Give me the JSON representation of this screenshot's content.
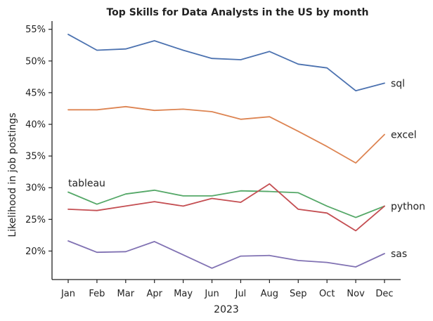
{
  "chart_data": {
    "type": "line",
    "title": "Top Skills for Data Analysts in the US by month",
    "xlabel": "2023",
    "ylabel": "Likelihood in job postings",
    "categories": [
      "Jan",
      "Feb",
      "Mar",
      "Apr",
      "May",
      "Jun",
      "Jul",
      "Aug",
      "Sep",
      "Oct",
      "Nov",
      "Dec"
    ],
    "ylim": [
      15.5,
      56.3
    ],
    "yticks": [
      {
        "value": 20,
        "label": "20%"
      },
      {
        "value": 25,
        "label": "25%"
      },
      {
        "value": 30,
        "label": "30%"
      },
      {
        "value": 35,
        "label": "35%"
      },
      {
        "value": 40,
        "label": "40%"
      },
      {
        "value": 45,
        "label": "45%"
      },
      {
        "value": 50,
        "label": "50%"
      },
      {
        "value": 55,
        "label": "55%"
      }
    ],
    "grid": false,
    "legend": "none",
    "series": [
      {
        "name": "sql",
        "color": "#4c72b0",
        "label_at": "end",
        "values": [
          54.2,
          51.7,
          51.9,
          53.2,
          51.7,
          50.4,
          50.2,
          51.5,
          49.5,
          48.9,
          45.3,
          46.5
        ]
      },
      {
        "name": "excel",
        "color": "#dd8452",
        "label_at": "end",
        "values": [
          42.3,
          42.3,
          42.8,
          42.2,
          42.4,
          42.0,
          40.8,
          41.2,
          38.9,
          36.5,
          33.9,
          38.4
        ]
      },
      {
        "name": "tableau",
        "color": "#55a868",
        "label_at": "start",
        "values": [
          29.3,
          27.4,
          29.0,
          29.6,
          28.7,
          28.7,
          29.5,
          29.4,
          29.2,
          27.1,
          25.3,
          27.1
        ]
      },
      {
        "name": "python",
        "color": "#c44e52",
        "label_at": "end",
        "values": [
          26.6,
          26.4,
          27.1,
          27.8,
          27.1,
          28.3,
          27.7,
          30.6,
          26.6,
          26.0,
          23.2,
          27.1
        ]
      },
      {
        "name": "sas",
        "color": "#8172b3",
        "label_at": "end",
        "values": [
          21.6,
          19.8,
          19.9,
          21.5,
          19.4,
          17.3,
          19.2,
          19.3,
          18.5,
          18.2,
          17.5,
          19.6
        ]
      }
    ]
  }
}
